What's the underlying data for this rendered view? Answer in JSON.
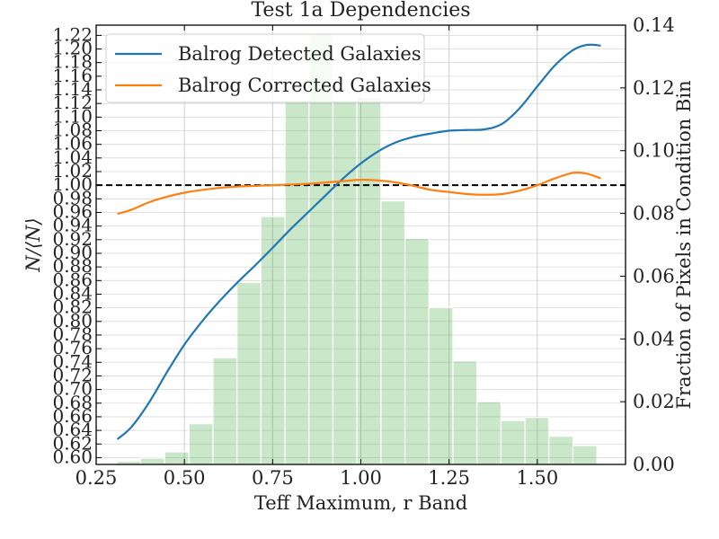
{
  "chart_data": {
    "type": "line+histogram",
    "title": "Test 1a Dependencies",
    "xlabel": "Teff Maximum, r Band",
    "ylabel_left": "N/⟨N⟩",
    "ylabel_right": "Fraction of Pixels in Condition Bin",
    "xlim": [
      0.25,
      1.75
    ],
    "ylim_left": [
      0.59,
      1.235
    ],
    "ylim_right": [
      0.0,
      0.14
    ],
    "x_ticks": [
      0.25,
      0.5,
      0.75,
      1.0,
      1.25,
      1.5
    ],
    "x_tick_labels": [
      "0.25",
      "0.50",
      "0.75",
      "1.00",
      "1.25",
      "1.50"
    ],
    "y_left_ticks": [
      0.6,
      0.62,
      0.64,
      0.66,
      0.68,
      0.7,
      0.72,
      0.74,
      0.76,
      0.78,
      0.8,
      0.82,
      0.84,
      0.86,
      0.88,
      0.9,
      0.92,
      0.94,
      0.96,
      0.98,
      1.0,
      1.02,
      1.04,
      1.06,
      1.08,
      1.1,
      1.12,
      1.14,
      1.16,
      1.18,
      1.2,
      1.22
    ],
    "y_left_tick_labels": [
      "0.60",
      "0.62",
      "0.64",
      "0.66",
      "0.68",
      "0.70",
      "0.72",
      "0.74",
      "0.76",
      "0.78",
      "0.80",
      "0.82",
      "0.84",
      "0.86",
      "0.88",
      "0.90",
      "0.92",
      "0.94",
      "0.96",
      "0.98",
      "1.00",
      "1.02",
      "1.04",
      "1.06",
      "1.08",
      "1.10",
      "1.12",
      "1.14",
      "1.16",
      "1.18",
      "1.20",
      "1.22"
    ],
    "y_right_ticks": [
      0.0,
      0.02,
      0.04,
      0.06,
      0.08,
      0.1,
      0.12,
      0.14
    ],
    "y_right_tick_labels": [
      "0.00",
      "0.02",
      "0.04",
      "0.06",
      "0.08",
      "0.10",
      "0.12",
      "0.14"
    ],
    "reference_line": {
      "y": 1.0,
      "style": "dashed",
      "color": "#000000"
    },
    "histogram": {
      "color": "#2ca02c",
      "bin_edges": [
        0.308,
        0.376,
        0.444,
        0.513,
        0.581,
        0.649,
        0.717,
        0.785,
        0.853,
        0.921,
        0.989,
        1.057,
        1.125,
        1.193,
        1.261,
        1.329,
        1.397,
        1.465,
        1.533,
        1.601,
        1.669
      ],
      "fractions": [
        0.001,
        0.002,
        0.004,
        0.013,
        0.034,
        0.058,
        0.079,
        0.116,
        0.137,
        0.116,
        0.117,
        0.084,
        0.072,
        0.05,
        0.033,
        0.02,
        0.014,
        0.015,
        0.009,
        0.006
      ]
    },
    "series": [
      {
        "name": "Balrog Detected Galaxies",
        "color": "#1f77b4",
        "x": [
          0.31,
          0.35,
          0.4,
          0.45,
          0.5,
          0.55,
          0.6,
          0.65,
          0.7,
          0.75,
          0.8,
          0.85,
          0.9,
          0.95,
          1.0,
          1.05,
          1.1,
          1.15,
          1.2,
          1.25,
          1.3,
          1.35,
          1.4,
          1.45,
          1.5,
          1.55,
          1.6,
          1.64,
          1.68
        ],
        "y": [
          0.627,
          0.645,
          0.681,
          0.725,
          0.766,
          0.8,
          0.83,
          0.857,
          0.882,
          0.908,
          0.935,
          0.96,
          0.985,
          1.01,
          1.032,
          1.05,
          1.063,
          1.071,
          1.076,
          1.08,
          1.081,
          1.082,
          1.09,
          1.113,
          1.145,
          1.176,
          1.198,
          1.206,
          1.205
        ]
      },
      {
        "name": "Balrog Corrected Galaxies",
        "color": "#ff7f0e",
        "x": [
          0.31,
          0.35,
          0.4,
          0.45,
          0.5,
          0.55,
          0.6,
          0.65,
          0.7,
          0.75,
          0.8,
          0.85,
          0.9,
          0.95,
          1.0,
          1.05,
          1.1,
          1.15,
          1.2,
          1.25,
          1.3,
          1.35,
          1.4,
          1.45,
          1.5,
          1.55,
          1.6,
          1.64,
          1.68
        ],
        "y": [
          0.958,
          0.964,
          0.975,
          0.983,
          0.989,
          0.993,
          0.996,
          0.998,
          0.999,
          1.0,
          1.001,
          1.002,
          1.004,
          1.006,
          1.008,
          1.007,
          1.004,
          0.999,
          0.993,
          0.99,
          0.987,
          0.986,
          0.987,
          0.992,
          1.0,
          1.01,
          1.018,
          1.017,
          1.01
        ]
      }
    ],
    "legend": {
      "position": "top-left",
      "entries": [
        "Balrog Detected Galaxies",
        "Balrog Corrected Galaxies"
      ]
    },
    "grid": true
  }
}
